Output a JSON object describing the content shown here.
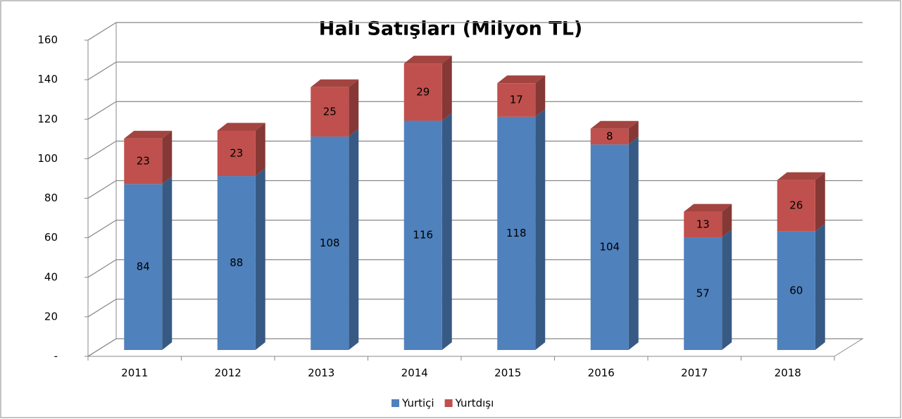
{
  "chart_data": {
    "type": "bar3d_stacked",
    "title": "Halı Satışları (Milyon TL)",
    "categories": [
      "2011",
      "2012",
      "2013",
      "2014",
      "2015",
      "2016",
      "2017",
      "2018"
    ],
    "series": [
      {
        "name": "Yurtiçi",
        "color": "#4f81bd",
        "values": [
          84,
          88,
          108,
          116,
          118,
          104,
          57,
          60
        ]
      },
      {
        "name": "Yurtdışı",
        "color": "#c0504d",
        "values": [
          23,
          23,
          25,
          29,
          17,
          8,
          13,
          26
        ]
      }
    ],
    "ylim": [
      0,
      160
    ],
    "yticks": [
      {
        "value": 0,
        "label": "-"
      },
      20,
      40,
      60,
      80,
      100,
      120,
      140,
      160
    ],
    "grid": true,
    "legend": "bottom"
  }
}
